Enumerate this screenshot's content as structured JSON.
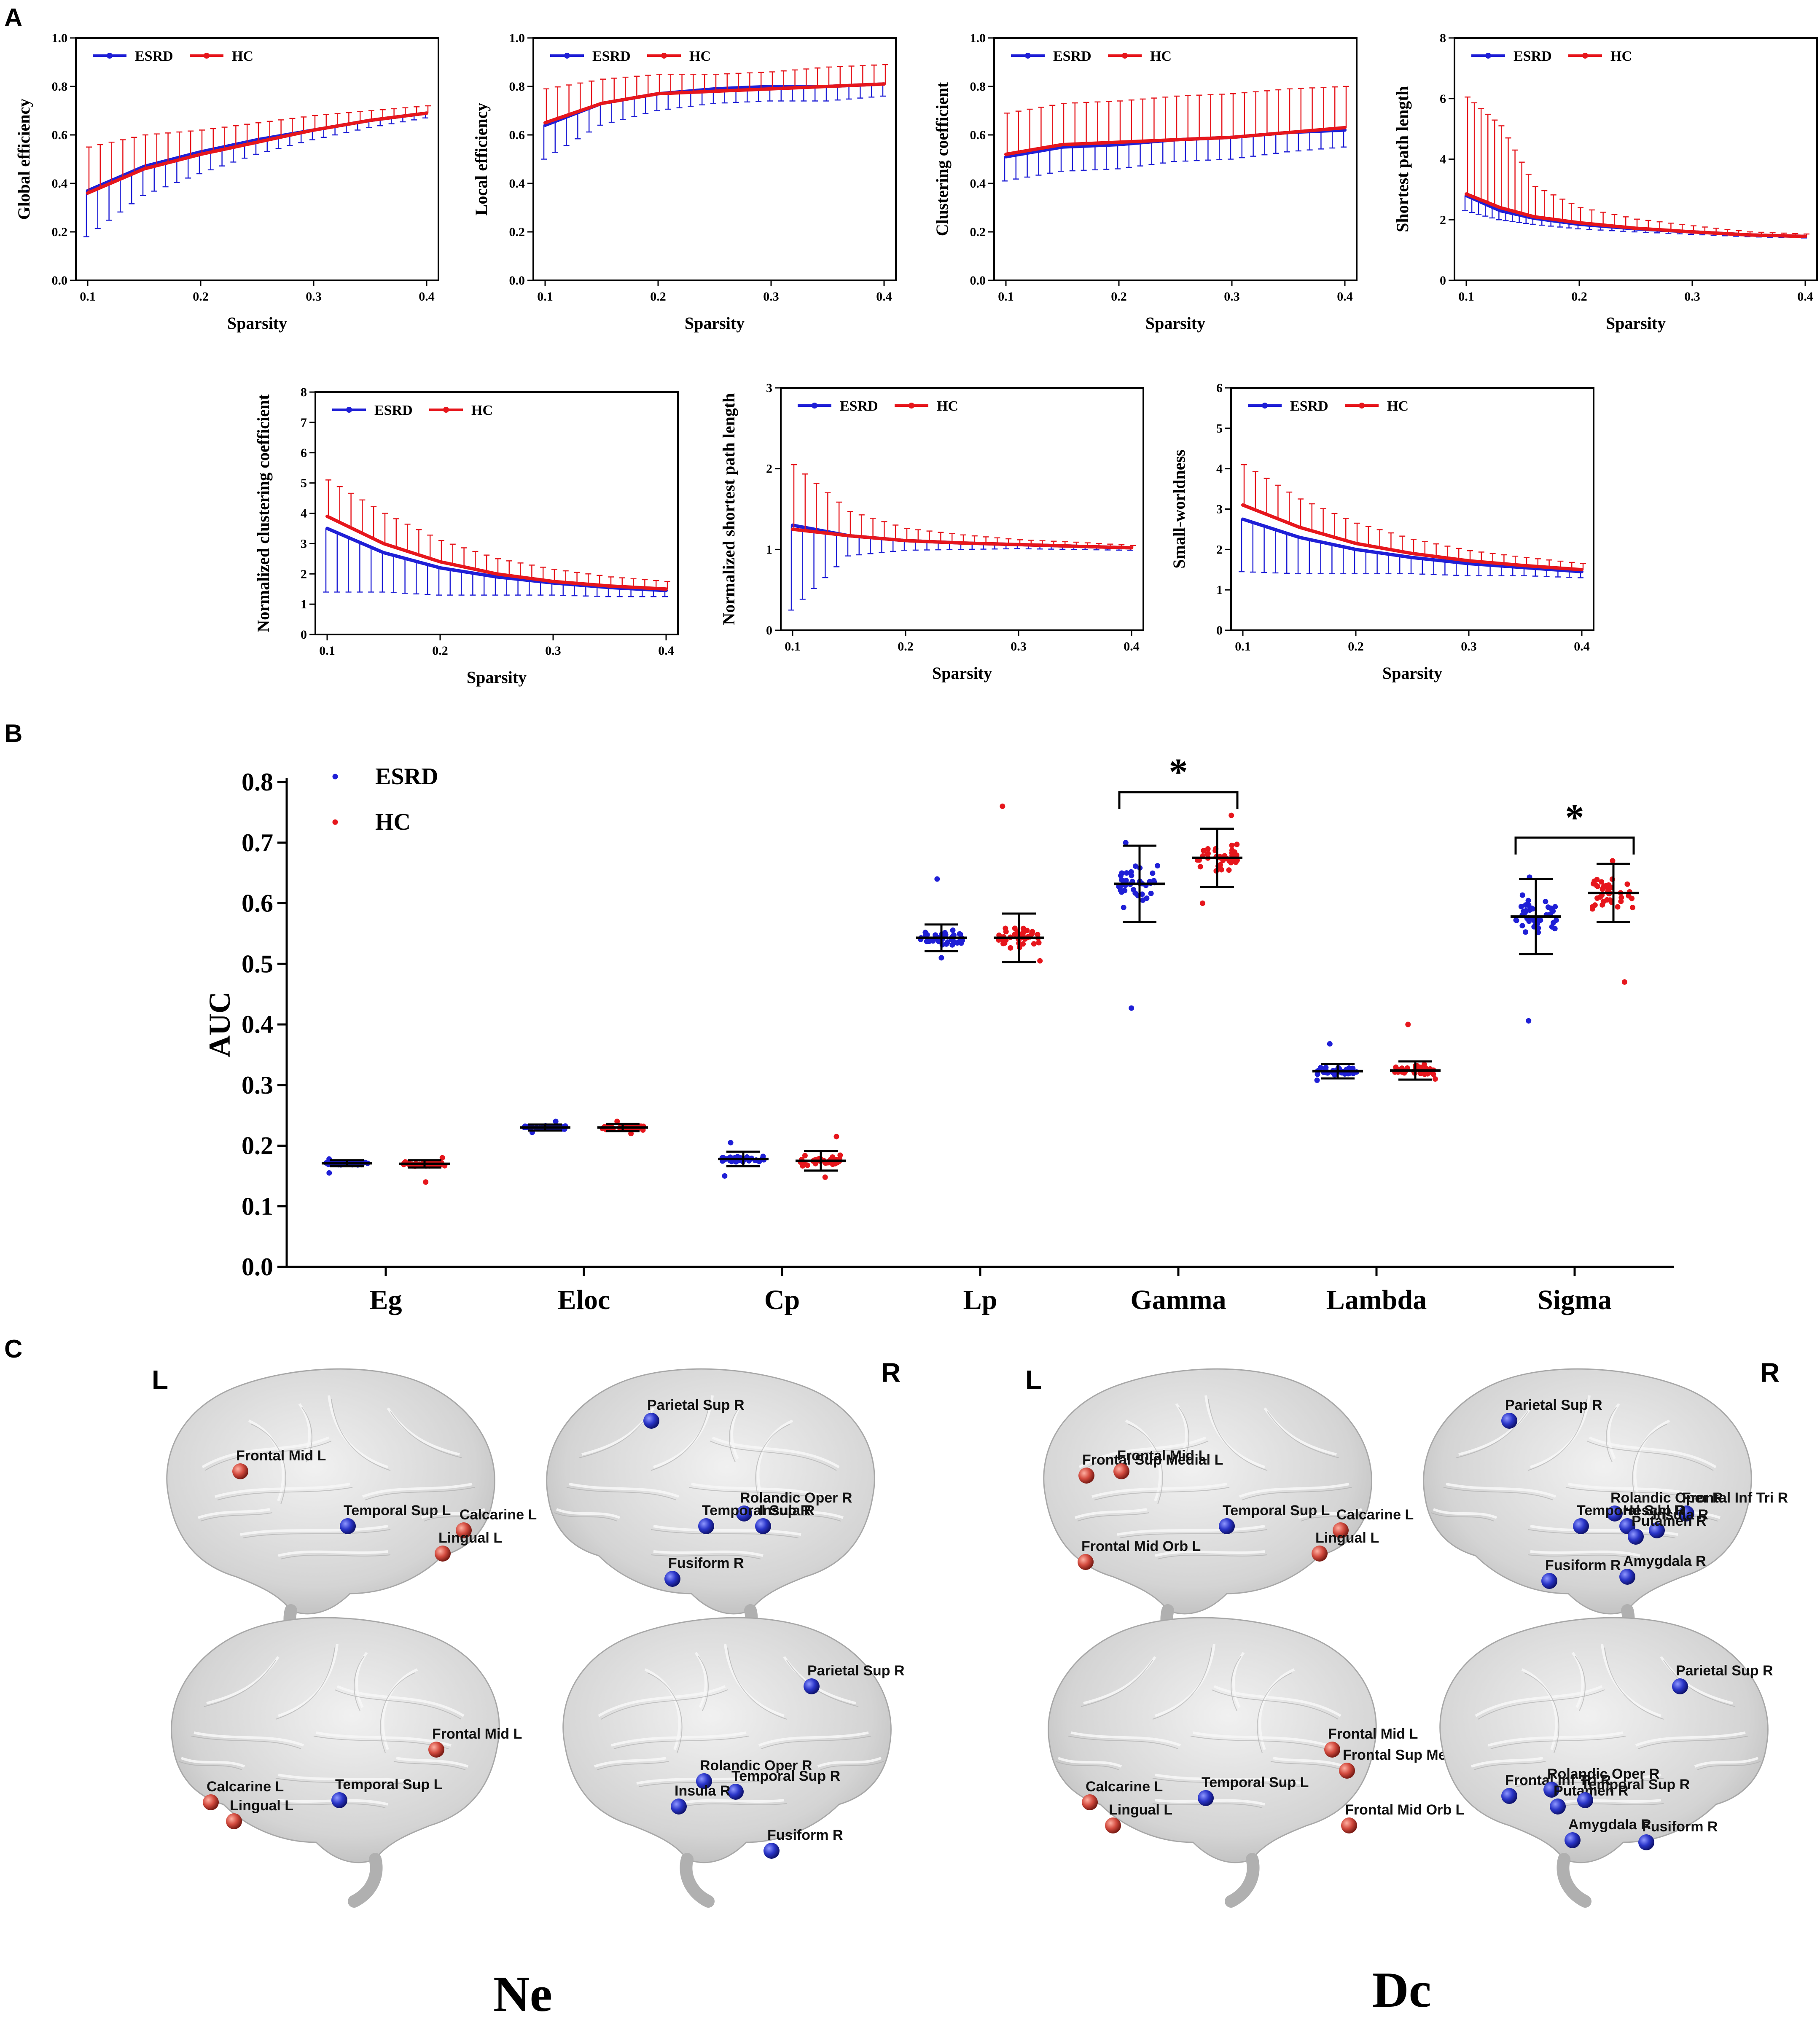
{
  "panel_labels": {
    "a": "A",
    "b": "B",
    "c": "C"
  },
  "colors": {
    "esrd": "#1f1fd6",
    "hc": "#e6161c",
    "brain": "#cfcfcf",
    "node_blue": "#2a35c8",
    "node_red": "#d24a3e"
  },
  "legend": {
    "esrd": "ESRD",
    "hc": "HC"
  },
  "chart_data": [
    {
      "type": "line",
      "id": "global_efficiency",
      "xlabel": "Sparsity",
      "ylabel": "Global efficiency",
      "xlim": [
        0.1,
        0.4
      ],
      "ylim": [
        0,
        1.0
      ],
      "xticks": [
        "0.1",
        "0.2",
        "0.3",
        "0.4"
      ],
      "yticks": [
        "0.0",
        "0.2",
        "0.4",
        "0.6",
        "0.8",
        "1.0"
      ],
      "legend_pos": "top-left",
      "x": [
        0.1,
        0.15,
        0.2,
        0.25,
        0.3,
        0.35,
        0.4
      ],
      "series": [
        {
          "name": "ESRD",
          "values": [
            0.37,
            0.47,
            0.53,
            0.58,
            0.62,
            0.66,
            0.69
          ],
          "err": [
            0.19,
            0.12,
            0.09,
            0.06,
            0.04,
            0.03,
            0.02
          ]
        },
        {
          "name": "HC",
          "values": [
            0.36,
            0.46,
            0.52,
            0.57,
            0.62,
            0.66,
            0.69
          ],
          "err": [
            0.19,
            0.14,
            0.1,
            0.08,
            0.06,
            0.04,
            0.03
          ]
        }
      ]
    },
    {
      "type": "line",
      "id": "local_efficiency",
      "xlabel": "Sparsity",
      "ylabel": "Local efficiency",
      "xlim": [
        0.1,
        0.4
      ],
      "ylim": [
        0,
        1.0
      ],
      "xticks": [
        "0.1",
        "0.2",
        "0.3",
        "0.4"
      ],
      "yticks": [
        "0.0",
        "0.2",
        "0.4",
        "0.6",
        "0.8",
        "1.0"
      ],
      "legend_pos": "top-left",
      "x": [
        0.1,
        0.15,
        0.2,
        0.25,
        0.3,
        0.35,
        0.4
      ],
      "series": [
        {
          "name": "ESRD",
          "values": [
            0.64,
            0.73,
            0.77,
            0.79,
            0.8,
            0.8,
            0.81
          ],
          "err": [
            0.14,
            0.09,
            0.07,
            0.06,
            0.06,
            0.06,
            0.05
          ]
        },
        {
          "name": "HC",
          "values": [
            0.65,
            0.73,
            0.77,
            0.78,
            0.79,
            0.8,
            0.81
          ],
          "err": [
            0.14,
            0.1,
            0.08,
            0.07,
            0.07,
            0.08,
            0.08
          ]
        }
      ]
    },
    {
      "type": "line",
      "id": "clustering_coefficient",
      "xlabel": "Sparsity",
      "ylabel": "Clustering coefficient",
      "xlim": [
        0.1,
        0.4
      ],
      "ylim": [
        0,
        1.0
      ],
      "xticks": [
        "0.1",
        "0.2",
        "0.3",
        "0.4"
      ],
      "yticks": [
        "0.0",
        "0.2",
        "0.4",
        "0.6",
        "0.8",
        "1.0"
      ],
      "legend_pos": "top-left",
      "x": [
        0.1,
        0.15,
        0.2,
        0.25,
        0.3,
        0.35,
        0.4
      ],
      "series": [
        {
          "name": "ESRD",
          "values": [
            0.51,
            0.55,
            0.56,
            0.58,
            0.59,
            0.61,
            0.62
          ],
          "err": [
            0.1,
            0.1,
            0.1,
            0.09,
            0.09,
            0.08,
            0.07
          ]
        },
        {
          "name": "HC",
          "values": [
            0.52,
            0.56,
            0.57,
            0.58,
            0.59,
            0.61,
            0.63
          ],
          "err": [
            0.17,
            0.17,
            0.17,
            0.18,
            0.18,
            0.18,
            0.17
          ]
        }
      ]
    },
    {
      "type": "line",
      "id": "shortest_path_length",
      "xlabel": "Sparsity",
      "ylabel": "Shortest path length",
      "xlim": [
        0.1,
        0.4
      ],
      "ylim": [
        0,
        8
      ],
      "xticks": [
        "0.1",
        "0.2",
        "0.3",
        "0.4"
      ],
      "yticks": [
        "0",
        "2",
        "4",
        "6",
        "8"
      ],
      "legend_pos": "top-left",
      "x": [
        0.1,
        0.13,
        0.16,
        0.2,
        0.25,
        0.3,
        0.35,
        0.4
      ],
      "series": [
        {
          "name": "ESRD",
          "values": [
            2.8,
            2.3,
            2.05,
            1.85,
            1.7,
            1.6,
            1.5,
            1.45
          ],
          "err": [
            0.5,
            0.3,
            0.2,
            0.15,
            0.1,
            0.08,
            0.06,
            0.05
          ]
        },
        {
          "name": "HC",
          "values": [
            2.85,
            2.4,
            2.1,
            1.9,
            1.72,
            1.6,
            1.5,
            1.45
          ],
          "err": [
            3.2,
            2.7,
            1.0,
            0.5,
            0.3,
            0.2,
            0.1,
            0.08
          ]
        }
      ]
    },
    {
      "type": "line",
      "id": "normalized_clustering_coefficient",
      "xlabel": "Sparsity",
      "ylabel": "Normalized clustering coefficient",
      "xlim": [
        0.1,
        0.4
      ],
      "ylim": [
        0,
        8
      ],
      "xticks": [
        "0.1",
        "0.2",
        "0.3",
        "0.4"
      ],
      "yticks": [
        "0",
        "1",
        "2",
        "3",
        "4",
        "5",
        "6",
        "7",
        "8"
      ],
      "legend_pos": "top-left",
      "x": [
        0.1,
        0.15,
        0.2,
        0.25,
        0.3,
        0.35,
        0.4
      ],
      "series": [
        {
          "name": "ESRD",
          "values": [
            3.5,
            2.7,
            2.2,
            1.9,
            1.7,
            1.55,
            1.45
          ],
          "err": [
            2.1,
            1.3,
            0.9,
            0.6,
            0.4,
            0.3,
            0.2
          ]
        },
        {
          "name": "HC",
          "values": [
            3.9,
            3.0,
            2.4,
            2.0,
            1.75,
            1.6,
            1.5
          ],
          "err": [
            1.2,
            1.0,
            0.7,
            0.5,
            0.4,
            0.3,
            0.25
          ]
        }
      ]
    },
    {
      "type": "line",
      "id": "normalized_shortest_path_length",
      "xlabel": "Sparsity",
      "ylabel": "Normalized shortest path length",
      "xlim": [
        0.1,
        0.4
      ],
      "ylim": [
        0,
        3
      ],
      "xticks": [
        "0.1",
        "0.2",
        "0.3",
        "0.4"
      ],
      "yticks": [
        "0",
        "1",
        "2",
        "3"
      ],
      "legend_pos": "top-left",
      "x": [
        0.1,
        0.15,
        0.2,
        0.25,
        0.3,
        0.35,
        0.4
      ],
      "series": [
        {
          "name": "ESRD",
          "values": [
            1.3,
            1.17,
            1.11,
            1.08,
            1.06,
            1.04,
            1.02
          ],
          "err": [
            1.05,
            0.25,
            0.12,
            0.08,
            0.05,
            0.04,
            0.03
          ]
        },
        {
          "name": "HC",
          "values": [
            1.25,
            1.17,
            1.11,
            1.08,
            1.06,
            1.04,
            1.02
          ],
          "err": [
            0.8,
            0.3,
            0.15,
            0.1,
            0.06,
            0.05,
            0.03
          ]
        }
      ]
    },
    {
      "type": "line",
      "id": "small_worldness",
      "xlabel": "Sparsity",
      "ylabel": "Small-worldness",
      "xlim": [
        0.1,
        0.4
      ],
      "ylim": [
        0,
        6
      ],
      "xticks": [
        "0.1",
        "0.2",
        "0.3",
        "0.4"
      ],
      "yticks": [
        "0",
        "1",
        "2",
        "3",
        "4",
        "5",
        "6"
      ],
      "legend_pos": "top-left",
      "x": [
        0.1,
        0.15,
        0.2,
        0.25,
        0.3,
        0.35,
        0.4
      ],
      "series": [
        {
          "name": "ESRD",
          "values": [
            2.75,
            2.3,
            2.0,
            1.8,
            1.65,
            1.55,
            1.45
          ],
          "err": [
            1.3,
            0.9,
            0.6,
            0.4,
            0.3,
            0.2,
            0.15
          ]
        },
        {
          "name": "HC",
          "values": [
            3.1,
            2.55,
            2.15,
            1.9,
            1.72,
            1.6,
            1.5
          ],
          "err": [
            1.0,
            0.7,
            0.5,
            0.35,
            0.25,
            0.2,
            0.15
          ]
        }
      ]
    },
    {
      "type": "scatter",
      "id": "auc",
      "ylabel": "AUC",
      "ylim": [
        0,
        0.8
      ],
      "yticks": [
        "0.0",
        "0.1",
        "0.2",
        "0.3",
        "0.4",
        "0.5",
        "0.6",
        "0.7",
        "0.8"
      ],
      "categories": [
        "Eg",
        "Eloc",
        "Cp",
        "Lp",
        "Gamma",
        "Lambda",
        "Sigma"
      ],
      "legend_pos": "top-left",
      "groups": [
        {
          "name": "ESRD",
          "mean": [
            0.171,
            0.23,
            0.178,
            0.543,
            0.632,
            0.323,
            0.578
          ],
          "sd": [
            0.005,
            0.005,
            0.012,
            0.022,
            0.063,
            0.012,
            0.062
          ],
          "min": [
            0.155,
            0.222,
            0.15,
            0.51,
            0.427,
            0.308,
            0.406
          ],
          "max": [
            0.178,
            0.24,
            0.205,
            0.64,
            0.7,
            0.368,
            0.643
          ]
        },
        {
          "name": "HC",
          "mean": [
            0.17,
            0.23,
            0.175,
            0.543,
            0.675,
            0.324,
            0.617
          ],
          "sd": [
            0.006,
            0.006,
            0.016,
            0.04,
            0.048,
            0.015,
            0.048
          ],
          "min": [
            0.14,
            0.22,
            0.148,
            0.505,
            0.6,
            0.31,
            0.47
          ],
          "max": [
            0.18,
            0.24,
            0.215,
            0.76,
            0.745,
            0.4,
            0.67
          ]
        }
      ],
      "significance": [
        {
          "category": "Gamma",
          "label": "*"
        },
        {
          "category": "Sigma",
          "label": "*"
        }
      ]
    }
  ],
  "brain_panel": {
    "side_labels": {
      "left_1": "L",
      "right_1": "R",
      "left_2": "L",
      "right_2": "R"
    },
    "methods": {
      "ne": "Ne",
      "dc": "Dc"
    },
    "ne": {
      "lat_left": [
        {
          "label": "Frontal_Mid_L",
          "color": "red"
        },
        {
          "label": "Temporal_Sup_L",
          "color": "blue"
        },
        {
          "label": "Calcarine_L",
          "color": "red"
        },
        {
          "label": "Lingual_L",
          "color": "red"
        }
      ],
      "lat_right": [
        {
          "label": "Parietal_Sup_R",
          "color": "blue"
        },
        {
          "label": "Rolandic_Oper_R",
          "color": "blue"
        },
        {
          "label": "Temporal_Sup_R",
          "color": "blue"
        },
        {
          "label": "Insula_R",
          "color": "blue"
        },
        {
          "label": "Fusiform_R",
          "color": "blue"
        }
      ],
      "med_left": [
        {
          "label": "Frontal_Mid_L",
          "color": "red"
        },
        {
          "label": "Temporal_Sup_L",
          "color": "blue"
        },
        {
          "label": "Calcarine_L",
          "color": "red"
        },
        {
          "label": "Lingual_L",
          "color": "red"
        }
      ],
      "med_right": [
        {
          "label": "Parietal_Sup_R",
          "color": "blue"
        },
        {
          "label": "Rolandic_Oper_R",
          "color": "blue"
        },
        {
          "label": "Temporal_Sup_R",
          "color": "blue"
        },
        {
          "label": "Insula_R",
          "color": "blue"
        },
        {
          "label": "Fusiform_R",
          "color": "blue"
        }
      ]
    },
    "dc": {
      "lat_left": [
        {
          "label": "Frontal_Sup_Medial_L",
          "color": "red"
        },
        {
          "label": "Frontal_Mid_L",
          "color": "red"
        },
        {
          "label": "Temporal_Sup_L",
          "color": "blue"
        },
        {
          "label": "Calcarine_L",
          "color": "red"
        },
        {
          "label": "Lingual_L",
          "color": "red"
        },
        {
          "label": "Frontal_Mid_Orb_L",
          "color": "red"
        }
      ],
      "lat_right": [
        {
          "label": "Parietal_Sup_R",
          "color": "blue"
        },
        {
          "label": "Rolandic_Oper_R",
          "color": "blue"
        },
        {
          "label": "Frontal_Inf_Tri_R",
          "color": "blue"
        },
        {
          "label": "Temporal_Sup_R",
          "color": "blue"
        },
        {
          "label": "Heschl_R",
          "color": "blue"
        },
        {
          "label": "Insula_R",
          "color": "blue"
        },
        {
          "label": "Putamen_R",
          "color": "blue"
        },
        {
          "label": "Fusiform_R",
          "color": "blue"
        },
        {
          "label": "Amygdala_R",
          "color": "blue"
        }
      ],
      "med_left": [
        {
          "label": "Frontal_Mid_L",
          "color": "red"
        },
        {
          "label": "Frontal_Sup_Medial_L",
          "color": "red"
        },
        {
          "label": "Calcarine_L",
          "color": "red"
        },
        {
          "label": "Temporal_Sup_L",
          "color": "blue"
        },
        {
          "label": "Lingual_L",
          "color": "red"
        },
        {
          "label": "Frontal_Mid_Orb_L",
          "color": "red"
        }
      ],
      "med_right": [
        {
          "label": "Parietal_Sup_R",
          "color": "blue"
        },
        {
          "label": "Frontal_Inf_Tri_R",
          "color": "blue"
        },
        {
          "label": "Rolandic_Oper_R",
          "color": "blue"
        },
        {
          "label": "Putamen_R",
          "color": "blue"
        },
        {
          "label": "Temporal_Sup_R",
          "color": "blue"
        },
        {
          "label": "Amygdala_R",
          "color": "blue"
        },
        {
          "label": "Fusiform_R",
          "color": "blue"
        }
      ]
    }
  }
}
